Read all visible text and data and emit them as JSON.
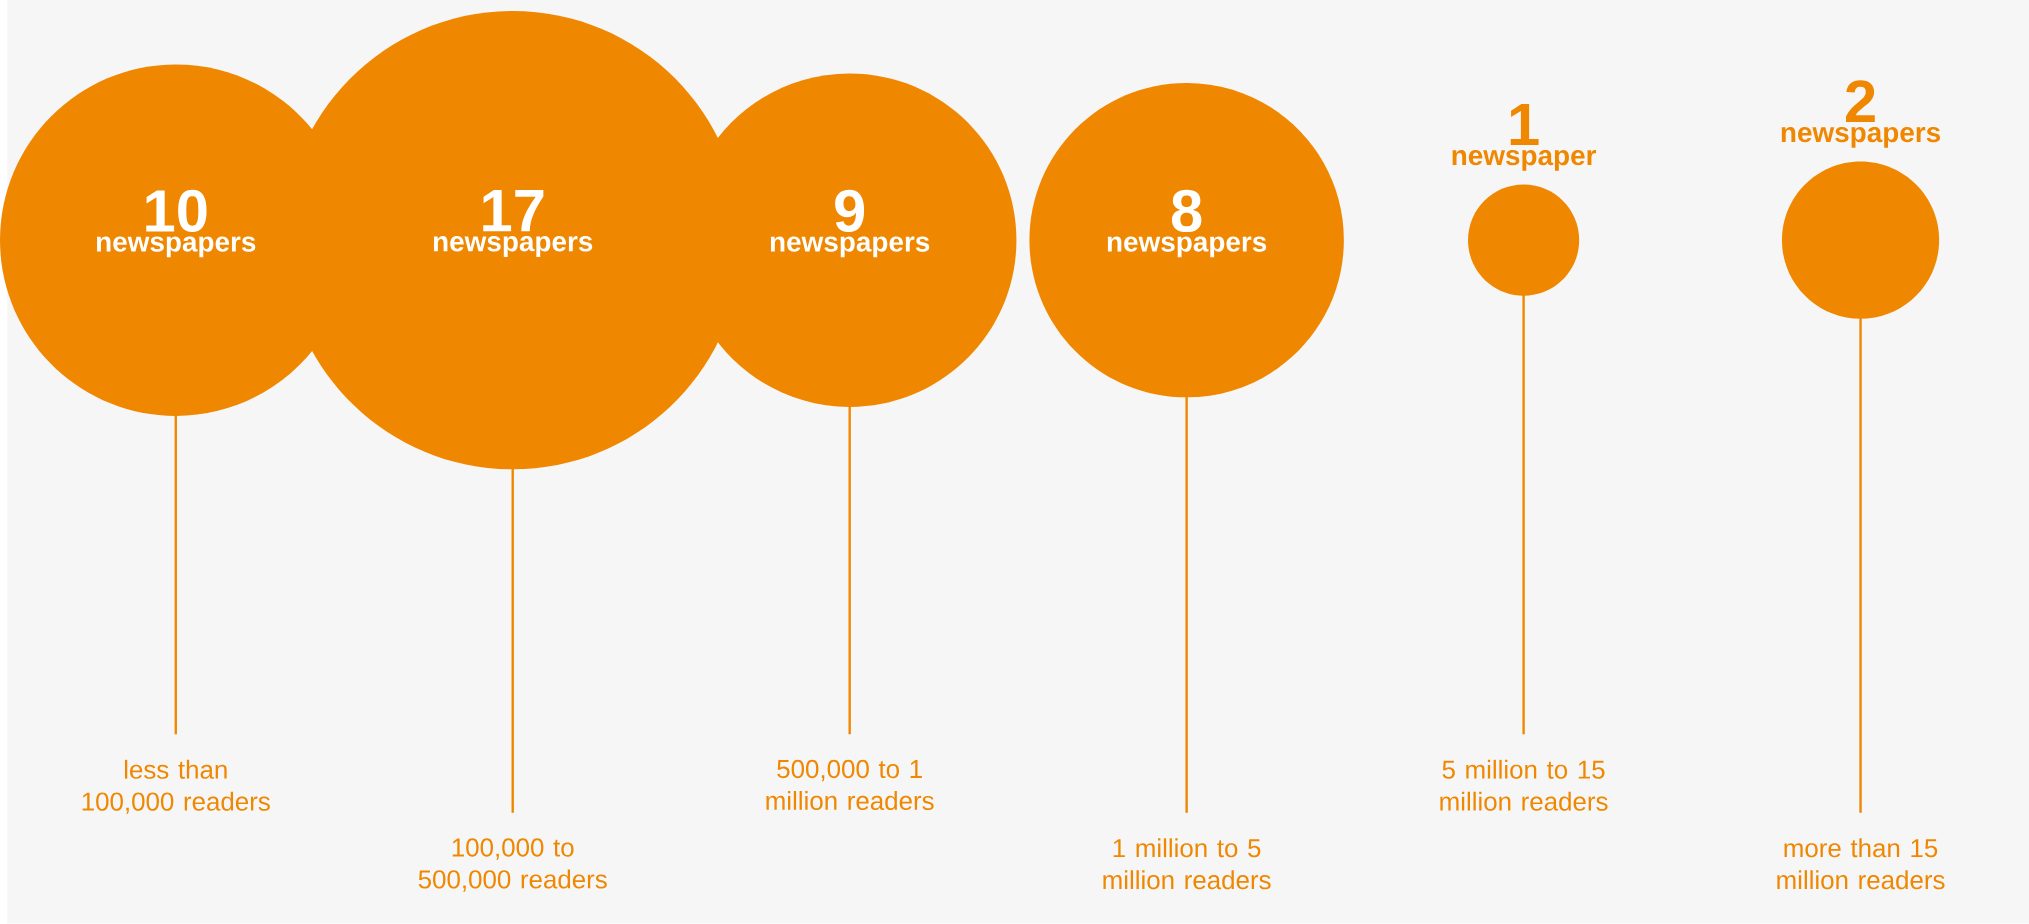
{
  "chart_data": {
    "type": "other",
    "color": "#f08700",
    "categories": [
      "less than 100,000 readers",
      "100,000 to 500,000 readers",
      "500,000 to 1 million readers",
      "1 million to 5 million readers",
      "5 million to 15 million readers",
      "more than 15 million readers"
    ],
    "values": [
      10,
      17,
      9,
      8,
      1,
      2
    ],
    "value_labels": [
      "10",
      "17",
      "9",
      "8",
      "1",
      "2"
    ],
    "annotations": [
      "newspapers",
      "newspapers",
      "newspapers",
      "newspapers",
      "newspaper",
      "newspapers"
    ]
  }
}
